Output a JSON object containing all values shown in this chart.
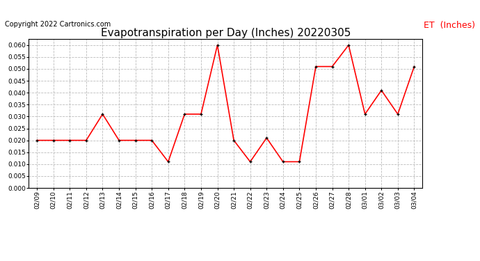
{
  "title": "Evapotranspiration per Day (Inches) 20220305",
  "copyright_text": "Copyright 2022 Cartronics.com",
  "legend_label": "ET  (Inches)",
  "dates": [
    "02/09",
    "02/10",
    "02/11",
    "02/12",
    "02/13",
    "02/14",
    "02/15",
    "02/16",
    "02/17",
    "02/18",
    "02/19",
    "02/20",
    "02/21",
    "02/22",
    "02/23",
    "02/24",
    "02/25",
    "02/26",
    "02/27",
    "02/28",
    "03/01",
    "03/02",
    "03/03",
    "03/04"
  ],
  "values": [
    0.02,
    0.02,
    0.02,
    0.02,
    0.031,
    0.02,
    0.02,
    0.02,
    0.011,
    0.031,
    0.031,
    0.06,
    0.02,
    0.011,
    0.021,
    0.011,
    0.011,
    0.051,
    0.051,
    0.06,
    0.031,
    0.041,
    0.031,
    0.051
  ],
  "line_color": "red",
  "marker_color": "black",
  "marker_size": 3,
  "line_width": 1.2,
  "ylim": [
    0.0,
    0.0625
  ],
  "yticks": [
    0.0,
    0.005,
    0.01,
    0.015,
    0.02,
    0.025,
    0.03,
    0.035,
    0.04,
    0.045,
    0.05,
    0.055,
    0.06
  ],
  "grid_color": "#bbbbbb",
  "grid_style": "--",
  "background_color": "white",
  "title_fontsize": 11,
  "copyright_fontsize": 7,
  "legend_fontsize": 9,
  "tick_fontsize": 6.5
}
